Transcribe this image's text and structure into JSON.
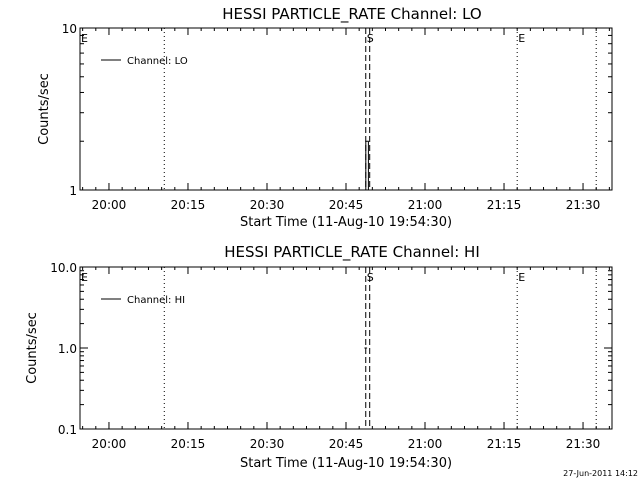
{
  "chart_data": [
    {
      "type": "line",
      "title": "HESSI PARTICLE_RATE Channel: LO",
      "xlabel": "Start Time (11-Aug-10 19:54:30)",
      "ylabel": "Counts/sec",
      "yscale": "log",
      "xlim_minutes": [
        "19:54:30",
        "21:35:30"
      ],
      "ylim": [
        1,
        10
      ],
      "xtick_labels": [
        "20:00",
        "20:15",
        "20:30",
        "20:45",
        "21:00",
        "21:15",
        "21:30"
      ],
      "xtick_minutes": [
        "20:00",
        "20:15",
        "20:30",
        "20:45",
        "21:00",
        "21:15",
        "21:30"
      ],
      "ytick_labels": [
        "1",
        "10"
      ],
      "ytick_values": [
        1,
        10
      ],
      "legend": {
        "label": "Channel: LO",
        "placement": "top-left"
      },
      "markers": [
        {
          "label": "E",
          "time": "19:54:30",
          "style": "dotted"
        },
        {
          "label": "",
          "time": "20:10:30",
          "style": "dotted"
        },
        {
          "label": "S",
          "time": "20:48:45",
          "style": "dashed"
        },
        {
          "label": "",
          "time": "20:49:30",
          "style": "dashed"
        },
        {
          "label": "E",
          "time": "21:17:30",
          "style": "dotted"
        },
        {
          "label": "",
          "time": "21:32:30",
          "style": "dotted"
        }
      ],
      "series": [
        {
          "x": [
            "20:48:30",
            "20:48:45",
            "20:48:45",
            "20:49:15",
            "20:49:15",
            "20:49:30"
          ],
          "values": [
            1,
            1,
            2,
            2,
            1,
            1
          ]
        }
      ]
    },
    {
      "type": "line",
      "title": "HESSI PARTICLE_RATE Channel: HI",
      "xlabel": "Start Time (11-Aug-10 19:54:30)",
      "ylabel": "Counts/sec",
      "yscale": "log",
      "xlim_minutes": [
        "19:54:30",
        "21:35:30"
      ],
      "ylim": [
        0.1,
        10
      ],
      "xtick_labels": [
        "20:00",
        "20:15",
        "20:30",
        "20:45",
        "21:00",
        "21:15",
        "21:30"
      ],
      "xtick_minutes": [
        "20:00",
        "20:15",
        "20:30",
        "20:45",
        "21:00",
        "21:15",
        "21:30"
      ],
      "ytick_labels": [
        "0.1",
        "1.0",
        "10.0"
      ],
      "ytick_values": [
        0.1,
        1,
        10
      ],
      "legend": {
        "label": "Channel: HI",
        "placement": "top-left"
      },
      "markers": [
        {
          "label": "E",
          "time": "19:54:30",
          "style": "dotted"
        },
        {
          "label": "",
          "time": "20:10:30",
          "style": "dotted"
        },
        {
          "label": "S",
          "time": "20:48:45",
          "style": "dashed"
        },
        {
          "label": "",
          "time": "20:49:30",
          "style": "dashed"
        },
        {
          "label": "E",
          "time": "21:17:30",
          "style": "dotted"
        },
        {
          "label": "",
          "time": "21:32:30",
          "style": "dotted"
        }
      ],
      "series": [
        {
          "x": [
            "20:48:30",
            "20:49:00"
          ],
          "values": [
            1,
            1
          ]
        }
      ]
    }
  ],
  "footer": {
    "timestamp": "27-Jun-2011 14:12"
  }
}
